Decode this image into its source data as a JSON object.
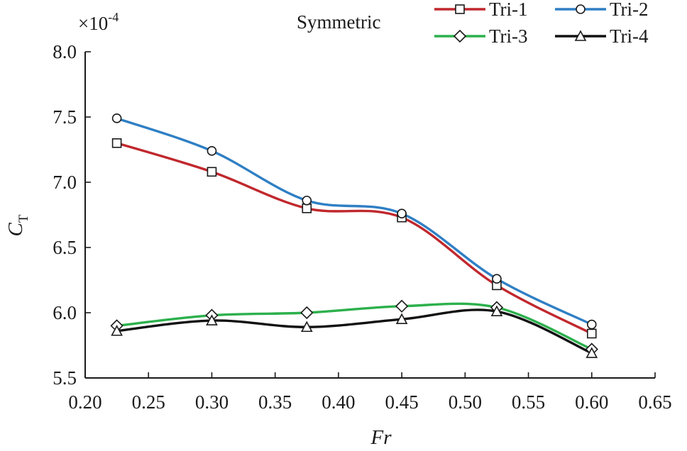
{
  "chart_data": {
    "type": "line",
    "title": "Symmetric",
    "xlabel": "Fr",
    "ylabel": "C",
    "ylabel_subscript": "T",
    "y_scale_label": "×10",
    "y_scale_exponent": "-4",
    "xlim": [
      0.2,
      0.65
    ],
    "ylim": [
      5.5,
      8.0
    ],
    "x_ticks": [
      0.2,
      0.25,
      0.3,
      0.35,
      0.4,
      0.45,
      0.5,
      0.55,
      0.6,
      0.65
    ],
    "x_tick_labels": [
      "0.20",
      "0.25",
      "0.30",
      "0.35",
      "0.40",
      "0.45",
      "0.50",
      "0.55",
      "0.60",
      "0.65"
    ],
    "y_ticks": [
      5.5,
      6.0,
      6.5,
      7.0,
      7.5,
      8.0
    ],
    "y_tick_labels": [
      "5.5",
      "6.0",
      "6.5",
      "7.0",
      "7.5",
      "8.0"
    ],
    "grid": false,
    "legend_position": "top-right",
    "x": [
      0.225,
      0.3,
      0.375,
      0.45,
      0.525,
      0.6
    ],
    "series": [
      {
        "name": "Tri-1",
        "color": "#c0282d",
        "marker": "square",
        "values": [
          7.3,
          7.08,
          6.8,
          6.73,
          6.21,
          5.84
        ]
      },
      {
        "name": "Tri-2",
        "color": "#2f7fc4",
        "marker": "circle",
        "values": [
          7.49,
          7.24,
          6.86,
          6.76,
          6.26,
          5.91
        ]
      },
      {
        "name": "Tri-3",
        "color": "#2cb04c",
        "marker": "diamond",
        "values": [
          5.9,
          5.98,
          6.0,
          6.05,
          6.04,
          5.72
        ]
      },
      {
        "name": "Tri-4",
        "color": "#111111",
        "marker": "triangle",
        "values": [
          5.86,
          5.94,
          5.89,
          5.95,
          6.01,
          5.69
        ]
      }
    ]
  }
}
